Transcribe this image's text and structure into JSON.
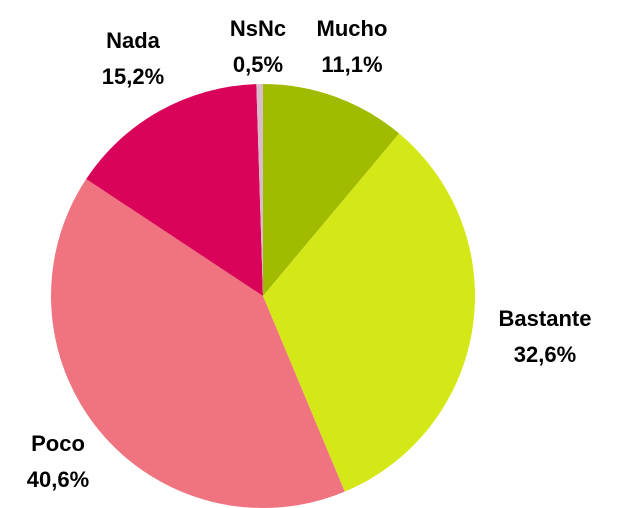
{
  "chart_data": {
    "type": "pie",
    "categories": [
      "Mucho",
      "Bastante",
      "Poco",
      "Nada",
      "NsNc"
    ],
    "values": [
      11.1,
      32.6,
      40.6,
      15.2,
      0.5
    ],
    "value_labels": [
      "11,1%",
      "32,6%",
      "40,6%",
      "15,2%",
      "0,5%"
    ],
    "colors": [
      "#a1bc00",
      "#d4e817",
      "#ef7480",
      "#d9045a",
      "#d9bccb"
    ]
  }
}
